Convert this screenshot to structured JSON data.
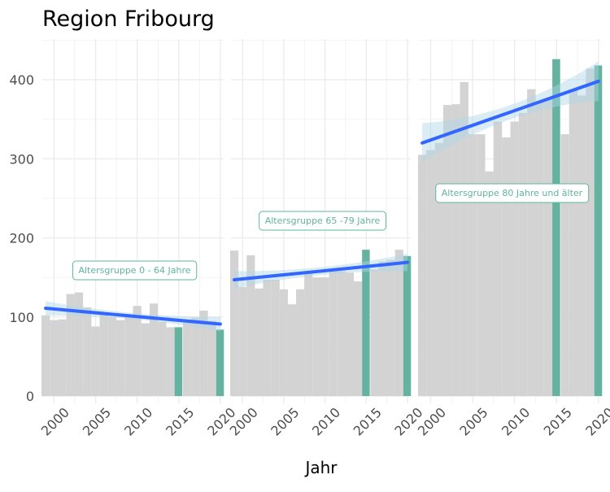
{
  "chart_data": {
    "type": "bar",
    "title": "Region Fribourg",
    "xlabel": "Jahr",
    "ylabel": "",
    "ylim": [
      0,
      450
    ],
    "yticks": [
      0,
      100,
      200,
      300,
      400
    ],
    "xticks": [
      2000,
      2005,
      2010,
      2015,
      2020
    ],
    "x": [
      1999,
      2000,
      2001,
      2002,
      2003,
      2004,
      2005,
      2006,
      2007,
      2008,
      2009,
      2010,
      2011,
      2012,
      2013,
      2014,
      2015,
      2016,
      2017,
      2018,
      2019,
      2020
    ],
    "highlight_years": [
      2015,
      2020
    ],
    "colors": {
      "bar": "#d3d3d3",
      "highlight_bar": "#66b2a0",
      "trend_line": "#3366ff",
      "confidence_band": "#add8e6",
      "annotation": "#5fb49c",
      "grid": "#ebebeb"
    },
    "grid": true,
    "facets": [
      {
        "label": "Altersgruppe 0 - 64 Jahre",
        "values": [
          102,
          96,
          97,
          129,
          131,
          112,
          88,
          102,
          100,
          96,
          103,
          114,
          92,
          117,
          94,
          87,
          87,
          95,
          99,
          108,
          95,
          84
        ],
        "trend": {
          "start": 111,
          "end": 91
        },
        "ci_halfwidth_ends": 9,
        "ci_halfwidth_mid": 4
      },
      {
        "label": "Altersgruppe 65 -79 Jahre",
        "values": [
          184,
          138,
          178,
          136,
          147,
          147,
          135,
          116,
          135,
          155,
          150,
          150,
          158,
          158,
          156,
          145,
          185,
          160,
          170,
          172,
          185,
          177
        ],
        "trend": {
          "start": 147,
          "end": 169
        },
        "ci_halfwidth_ends": 11,
        "ci_halfwidth_mid": 5
      },
      {
        "label": "Altersgruppe 80 Jahre und älter",
        "values": [
          305,
          311,
          320,
          368,
          369,
          397,
          331,
          331,
          284,
          347,
          327,
          347,
          358,
          388,
          373,
          375,
          426,
          331,
          388,
          380,
          414,
          418
        ],
        "trend": {
          "start": 320,
          "end": 398
        },
        "ci_halfwidth_ends": 25,
        "ci_halfwidth_mid": 9
      }
    ]
  }
}
